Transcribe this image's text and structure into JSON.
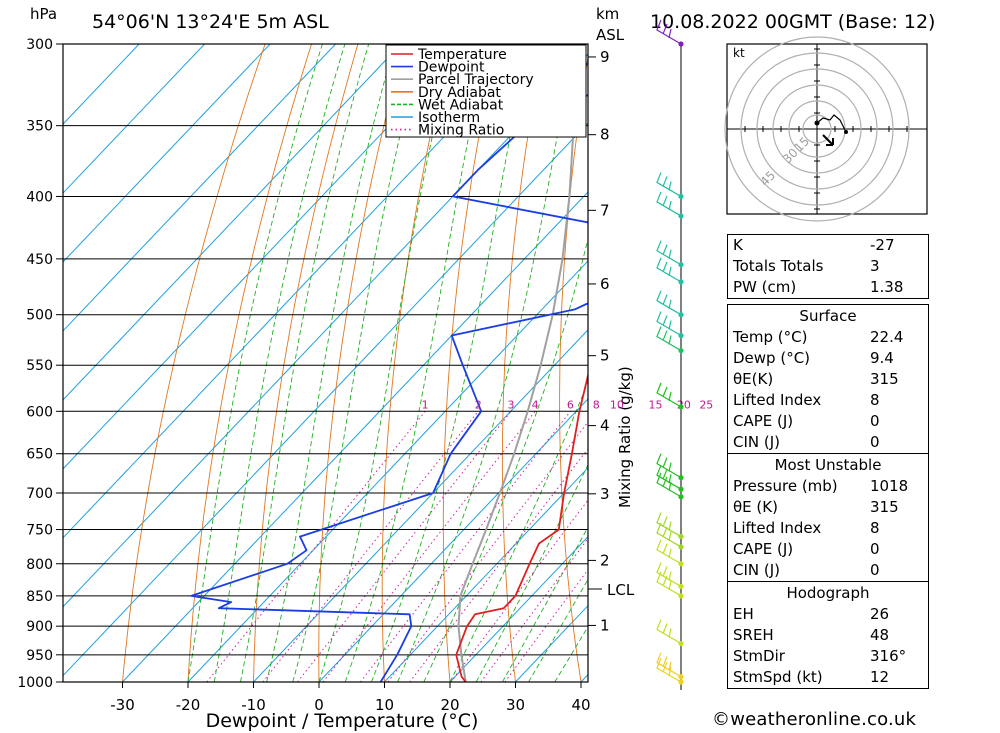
{
  "header": {
    "left_unit": "hPa",
    "location": "54°06'N 13°24'E 5m ASL",
    "km_unit": "km",
    "asl_unit": "ASL",
    "timestamp": "10.08.2022 00GMT (Base: 12)"
  },
  "chart_data": {
    "type": "line",
    "x_axis": {
      "label": "Dewpoint / Temperature (°C)",
      "ticks": [
        -30,
        -20,
        -10,
        0,
        10,
        20,
        30,
        40
      ]
    },
    "y_axis": {
      "label": "hPa",
      "ticks": [
        300,
        350,
        400,
        450,
        500,
        550,
        600,
        650,
        700,
        750,
        800,
        850,
        900,
        950,
        1000
      ]
    },
    "km_axis": {
      "labels": [
        "9",
        "8",
        "7",
        "6",
        "5",
        "4",
        "3",
        "2",
        "1"
      ],
      "lcl_label": "LCL"
    },
    "mixing_ratio": {
      "axis_label": "Mixing Ratio (g/kg)",
      "labels": [
        "1",
        "2",
        "3",
        "4",
        "6",
        "8",
        "10",
        "15",
        "20",
        "25"
      ]
    },
    "legend": {
      "position": "top-right",
      "entries": [
        {
          "name": "Temperature",
          "color": "#e02020"
        },
        {
          "name": "Dewpoint",
          "color": "#1a3ee0"
        },
        {
          "name": "Parcel Trajectory",
          "color": "#a0a0a0"
        },
        {
          "name": "Dry Adiabat",
          "color": "#e07820"
        },
        {
          "name": "Wet Adiabat",
          "color": "#20b020"
        },
        {
          "name": "Isotherm",
          "color": "#20a0e0"
        },
        {
          "name": "Mixing Ratio",
          "color": "#d020a0"
        }
      ]
    },
    "temperature": [
      {
        "p": 1000,
        "t": 22.4
      },
      {
        "p": 990,
        "t": 21.0
      },
      {
        "p": 950,
        "t": 17.0
      },
      {
        "p": 900,
        "t": 14.5
      },
      {
        "p": 880,
        "t": 14.0
      },
      {
        "p": 870,
        "t": 17.5
      },
      {
        "p": 850,
        "t": 17.5
      },
      {
        "p": 800,
        "t": 15.0
      },
      {
        "p": 770,
        "t": 13.5
      },
      {
        "p": 750,
        "t": 14.5
      },
      {
        "p": 700,
        "t": 10.0
      },
      {
        "p": 650,
        "t": 5.5
      },
      {
        "p": 600,
        "t": 0.5
      },
      {
        "p": 550,
        "t": -4.5
      },
      {
        "p": 500,
        "t": -10.5
      },
      {
        "p": 450,
        "t": -18.0
      },
      {
        "p": 400,
        "t": -25.0
      },
      {
        "p": 380,
        "t": -30.0
      },
      {
        "p": 350,
        "t": -34.5
      },
      {
        "p": 300,
        "t": -44.5
      }
    ],
    "dewpoint": [
      {
        "p": 1000,
        "t": 9.4
      },
      {
        "p": 950,
        "t": 8.0
      },
      {
        "p": 900,
        "t": 6.0
      },
      {
        "p": 880,
        "t": 4.0
      },
      {
        "p": 870,
        "t": -26.0
      },
      {
        "p": 860,
        "t": -25.0
      },
      {
        "p": 850,
        "t": -32.0
      },
      {
        "p": 800,
        "t": -22.0
      },
      {
        "p": 780,
        "t": -21.0
      },
      {
        "p": 760,
        "t": -24.0
      },
      {
        "p": 700,
        "t": -10.0
      },
      {
        "p": 650,
        "t": -13.0
      },
      {
        "p": 600,
        "t": -14.5
      },
      {
        "p": 550,
        "t": -24.0
      },
      {
        "p": 520,
        "t": -30.0
      },
      {
        "p": 495,
        "t": -15.0
      },
      {
        "p": 490,
        "t": -14.0
      },
      {
        "p": 480,
        "t": -9.0
      },
      {
        "p": 460,
        "t": -10.0
      },
      {
        "p": 430,
        "t": -14.0
      },
      {
        "p": 400,
        "t": -50.0
      },
      {
        "p": 380,
        "t": -50.0
      },
      {
        "p": 350,
        "t": -49.0
      },
      {
        "p": 330,
        "t": -44.0
      },
      {
        "p": 320,
        "t": -42.0
      },
      {
        "p": 310,
        "t": -50.0
      },
      {
        "p": 300,
        "t": -53.0
      }
    ],
    "parcel": [
      {
        "p": 1000,
        "t": 22.4
      },
      {
        "p": 950,
        "t": 17.8
      },
      {
        "p": 900,
        "t": 13.2
      },
      {
        "p": 850,
        "t": 9.1
      },
      {
        "p": 800,
        "t": 6.3
      },
      {
        "p": 750,
        "t": 3.4
      },
      {
        "p": 700,
        "t": 0.2
      },
      {
        "p": 650,
        "t": -3.3
      },
      {
        "p": 600,
        "t": -7.4
      },
      {
        "p": 550,
        "t": -12.1
      },
      {
        "p": 500,
        "t": -17.6
      },
      {
        "p": 450,
        "t": -24.2
      },
      {
        "p": 400,
        "t": -32.2
      },
      {
        "p": 350,
        "t": -41.8
      },
      {
        "p": 300,
        "t": -53.4
      }
    ],
    "lcl_pressure": 845,
    "wind_profile": [
      {
        "p": 300,
        "color": "#8020c0"
      },
      {
        "p": 400,
        "color": "#20c0a0"
      },
      {
        "p": 415,
        "color": "#20c0a0"
      },
      {
        "p": 455,
        "color": "#20c0a0"
      },
      {
        "p": 470,
        "color": "#20c0a0"
      },
      {
        "p": 500,
        "color": "#20c0a0"
      },
      {
        "p": 520,
        "color": "#20c0a0"
      },
      {
        "p": 535,
        "color": "#20c060"
      },
      {
        "p": 595,
        "color": "#20c020"
      },
      {
        "p": 680,
        "color": "#20c020"
      },
      {
        "p": 695,
        "color": "#20c020"
      },
      {
        "p": 705,
        "color": "#20c020"
      },
      {
        "p": 760,
        "color": "#a0d820"
      },
      {
        "p": 775,
        "color": "#a0d820"
      },
      {
        "p": 800,
        "color": "#c0e020"
      },
      {
        "p": 835,
        "color": "#c0e020"
      },
      {
        "p": 850,
        "color": "#c0e020"
      },
      {
        "p": 930,
        "color": "#c0e020"
      },
      {
        "p": 990,
        "color": "#f0d020"
      },
      {
        "p": 1000,
        "color": "#f0d020"
      }
    ]
  },
  "hodograph": {
    "unit": "kt",
    "rings": [
      "15",
      "30",
      "45"
    ]
  },
  "indices": {
    "general": [
      {
        "label": "K",
        "value": "-27"
      },
      {
        "label": "Totals Totals",
        "value": "3"
      },
      {
        "label": "PW (cm)",
        "value": "1.38"
      }
    ],
    "surface": {
      "title": "Surface",
      "rows": [
        {
          "label": "Temp (°C)",
          "value": "22.4"
        },
        {
          "label": "Dewp (°C)",
          "value": "9.4"
        },
        {
          "label": "θE(K)",
          "value": "315"
        },
        {
          "label": "Lifted Index",
          "value": "8"
        },
        {
          "label": "CAPE (J)",
          "value": "0"
        },
        {
          "label": "CIN (J)",
          "value": "0"
        }
      ]
    },
    "most_unstable": {
      "title": "Most Unstable",
      "rows": [
        {
          "label": "Pressure (mb)",
          "value": "1018"
        },
        {
          "label": "θE (K)",
          "value": "315"
        },
        {
          "label": "Lifted Index",
          "value": "8"
        },
        {
          "label": "CAPE (J)",
          "value": "0"
        },
        {
          "label": "CIN (J)",
          "value": "0"
        }
      ]
    },
    "hodograph_stats": {
      "title": "Hodograph",
      "rows": [
        {
          "label": "EH",
          "value": "26"
        },
        {
          "label": "SREH",
          "value": "48"
        },
        {
          "label": "StmDir",
          "value": "316°"
        },
        {
          "label": "StmSpd (kt)",
          "value": "12"
        }
      ]
    }
  },
  "footer": {
    "credit": "©weatheronline.co.uk"
  }
}
